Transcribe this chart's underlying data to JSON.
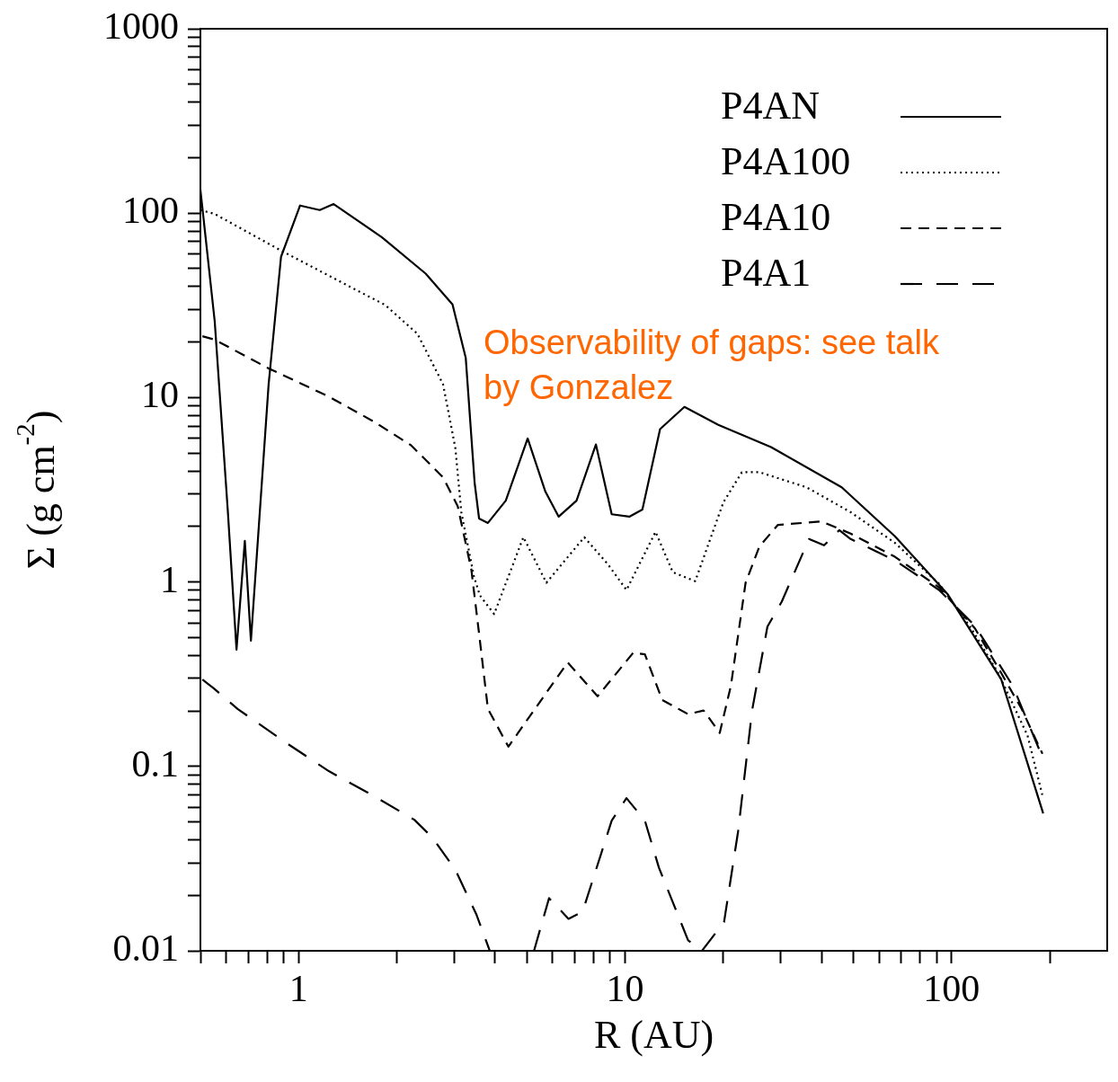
{
  "chart_data": {
    "type": "line",
    "xlabel": "R (AU)",
    "ylabel": "Σ (g cm$^{-2}$)",
    "log": "xy",
    "legend": "top right",
    "xlim": [
      0.5,
      300
    ],
    "ylim": [
      0.01,
      1000
    ],
    "xticks": [
      {
        "value": 0.5,
        "label": null
      },
      {
        "value": 0.6,
        "label": null
      },
      {
        "value": 0.7,
        "label": null
      },
      {
        "value": 0.8,
        "label": null
      },
      {
        "value": 0.9,
        "label": null
      },
      1,
      {
        "value": 2,
        "label": null
      },
      {
        "value": 3,
        "label": null
      },
      {
        "value": 4,
        "label": null
      },
      {
        "value": 5,
        "label": null
      },
      {
        "value": 6,
        "label": null
      },
      {
        "value": 7,
        "label": null
      },
      {
        "value": 8,
        "label": null
      },
      {
        "value": 9,
        "label": null
      },
      10,
      {
        "value": 20,
        "label": null
      },
      {
        "value": 30,
        "label": null
      },
      {
        "value": 40,
        "label": null
      },
      {
        "value": 50,
        "label": null
      },
      {
        "value": 60,
        "label": null
      },
      {
        "value": 70,
        "label": null
      },
      {
        "value": 80,
        "label": null
      },
      {
        "value": 90,
        "label": null
      },
      100,
      {
        "value": 200,
        "label": null
      }
    ],
    "yticks": [
      0.01,
      {
        "value": 0.02,
        "label": null
      },
      {
        "value": 0.03,
        "label": null
      },
      {
        "value": 0.04,
        "label": null
      },
      {
        "value": 0.05,
        "label": null
      },
      {
        "value": 0.06,
        "label": null
      },
      {
        "value": 0.07,
        "label": null
      },
      {
        "value": 0.08,
        "label": null
      },
      {
        "value": 0.09,
        "label": null
      },
      0.1,
      {
        "value": 0.2,
        "label": null
      },
      {
        "value": 0.3,
        "label": null
      },
      {
        "value": 0.4,
        "label": null
      },
      {
        "value": 0.5,
        "label": null
      },
      {
        "value": 0.6,
        "label": null
      },
      {
        "value": 0.7,
        "label": null
      },
      {
        "value": 0.8,
        "label": null
      },
      {
        "value": 0.9,
        "label": null
      },
      1,
      {
        "value": 2,
        "label": null
      },
      {
        "value": 3,
        "label": null
      },
      {
        "value": 4,
        "label": null
      },
      {
        "value": 5,
        "label": null
      },
      {
        "value": 6,
        "label": null
      },
      {
        "value": 7,
        "label": null
      },
      {
        "value": 8,
        "label": null
      },
      {
        "value": 9,
        "label": null
      },
      10,
      {
        "value": 20,
        "label": null
      },
      {
        "value": 30,
        "label": null
      },
      {
        "value": 40,
        "label": null
      },
      {
        "value": 50,
        "label": null
      },
      {
        "value": 60,
        "label": null
      },
      {
        "value": 70,
        "label": null
      },
      {
        "value": 80,
        "label": null
      },
      {
        "value": 90,
        "label": null
      },
      100,
      {
        "value": 200,
        "label": null
      },
      {
        "value": 300,
        "label": null
      },
      {
        "value": 400,
        "label": null
      },
      {
        "value": 500,
        "label": null
      },
      {
        "value": 600,
        "label": null
      },
      {
        "value": 700,
        "label": null
      },
      {
        "value": 800,
        "label": null
      },
      {
        "value": 900,
        "label": null
      },
      1000
    ],
    "annotations": [
      "Observability of gaps: see talk\nby Gonzalez"
    ],
    "series": [
      {
        "name": "P4AN",
        "color": "#000000",
        "line_style": "solid",
        "x": [
          0.5,
          0.553,
          0.607,
          0.645,
          0.684,
          0.714,
          0.809,
          0.883,
          1.01,
          1.16,
          1.28,
          1.8,
          2.45,
          2.96,
          3.25,
          3.46,
          3.57,
          3.8,
          4.31,
          5.03,
          5.7,
          6.26,
          7.1,
          8.14,
          9.1,
          10.3,
          11.3,
          12.8,
          15.2,
          19.3,
          28,
          46.1,
          67.1,
          97.5,
          142,
          191
        ],
        "values": [
          134,
          26,
          2.39,
          0.43,
          1.67,
          0.48,
          11.8,
          58,
          110,
          104,
          112,
          74,
          47,
          32,
          16.4,
          3.45,
          2.21,
          2.09,
          2.76,
          6,
          3.09,
          2.26,
          2.76,
          5.57,
          2.33,
          2.26,
          2.47,
          6.74,
          8.9,
          7.12,
          5.39,
          3.26,
          1.77,
          0.855,
          0.297,
          0.0556
        ]
      },
      {
        "name": "P4A100",
        "color": "#000000",
        "line_style": "dotted",
        "x": [
          0.5,
          0.553,
          0.883,
          1.48,
          1.84,
          2.31,
          2.77,
          3.02,
          3.15,
          3.44,
          3.59,
          3.97,
          4.88,
          5.74,
          7.5,
          8.88,
          10.1,
          12.4,
          14,
          16.4,
          20,
          22.8,
          25.8,
          36,
          49.1,
          67.1,
          91.6,
          115,
          139,
          171,
          190
        ],
        "values": [
          104,
          99,
          62.7,
          38.8,
          31.8,
          22.2,
          11.8,
          5.33,
          2.39,
          1.08,
          0.846,
          0.67,
          1.75,
          0.99,
          1.75,
          1.24,
          0.905,
          1.87,
          1.13,
          1.01,
          2.7,
          3.94,
          3.94,
          3.26,
          2.39,
          1.63,
          0.978,
          0.56,
          0.321,
          0.147,
          0.0695
        ]
      },
      {
        "name": "P4A10",
        "color": "#000000",
        "line_style": "dashed",
        "x": [
          0.507,
          0.553,
          0.809,
          1.24,
          1.69,
          2.21,
          2.77,
          3.07,
          3.38,
          3.59,
          3.8,
          4.39,
          6.67,
          8.24,
          10.6,
          11.5,
          13,
          15.6,
          17.4,
          19.5,
          21.1,
          23.4,
          25.8,
          29.4,
          40,
          49.1,
          67.1,
          91.6,
          118,
          139,
          164,
          190
        ],
        "values": [
          21.5,
          20.6,
          14.4,
          10.1,
          7.45,
          5.51,
          3.69,
          2.58,
          1.17,
          0.484,
          0.205,
          0.128,
          0.366,
          0.24,
          0.414,
          0.405,
          0.229,
          0.192,
          0.201,
          0.152,
          0.274,
          0.99,
          1.56,
          2.04,
          2.13,
          1.83,
          1.37,
          0.935,
          0.56,
          0.343,
          0.205,
          0.117
        ]
      },
      {
        "name": "P4A1",
        "color": "#000000",
        "line_style": "dashed",
        "x": [
          0.507,
          0.549,
          0.65,
          0.905,
          1.24,
          1.69,
          2.26,
          2.57,
          3.02,
          3.5,
          3.85,
          4.5,
          5.26,
          5.85,
          6.71,
          7.41,
          9.1,
          10.1,
          11.5,
          12.7,
          15.6,
          17.2,
          20.1,
          22.2,
          24.5,
          27.3,
          30.2,
          36.6,
          40.7,
          45.3,
          49.1,
          67.1,
          91.6,
          118,
          154,
          190
        ],
        "values": [
          0.296,
          0.265,
          0.205,
          0.136,
          0.094,
          0.0695,
          0.0514,
          0.0411,
          0.0275,
          0.0158,
          0.01,
          null,
          0.01,
          0.0193,
          0.0149,
          0.0163,
          0.0508,
          0.0673,
          0.0508,
          0.0282,
          0.0114,
          0.01,
          0.0143,
          0.0445,
          0.201,
          0.573,
          0.782,
          1.71,
          1.58,
          1.91,
          1.71,
          1.31,
          0.905,
          0.579,
          0.274,
          0.112
        ]
      }
    ]
  }
}
